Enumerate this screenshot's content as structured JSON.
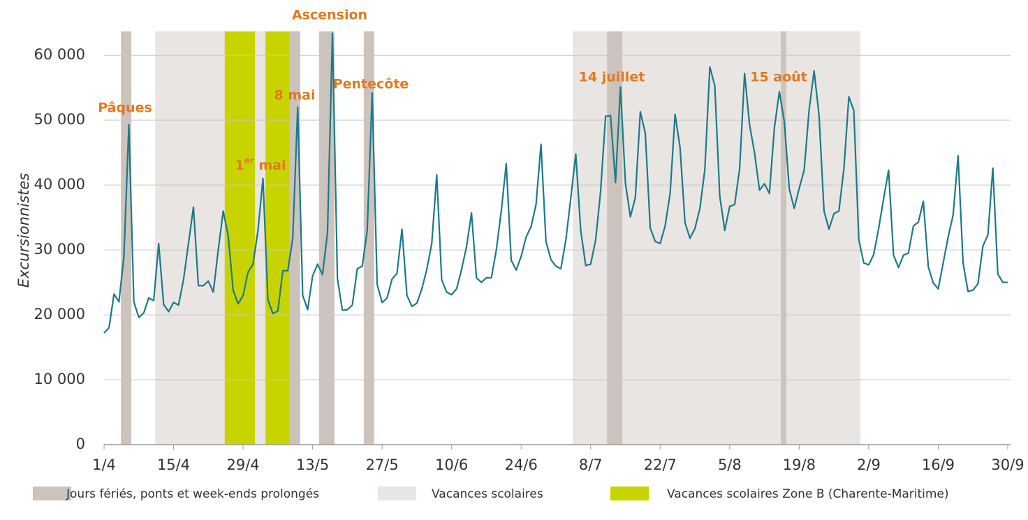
{
  "chart_data": {
    "type": "line",
    "y_label": "Excursionnistes",
    "categories": [
      "1/4",
      null,
      null,
      null,
      null,
      null,
      null,
      null,
      null,
      null,
      null,
      null,
      null,
      null,
      "15/4",
      null,
      null,
      null,
      null,
      null,
      null,
      null,
      null,
      null,
      null,
      null,
      null,
      null,
      "29/4",
      null,
      null,
      null,
      null,
      null,
      null,
      null,
      null,
      null,
      null,
      null,
      null,
      null,
      "13/5",
      null,
      null,
      null,
      null,
      null,
      null,
      null,
      null,
      null,
      null,
      null,
      null,
      null,
      "27/5",
      null,
      null,
      null,
      null,
      null,
      null,
      null,
      null,
      null,
      null,
      null,
      null,
      null,
      "10/6",
      null,
      null,
      null,
      null,
      null,
      null,
      null,
      null,
      null,
      null,
      null,
      null,
      null,
      "24/6",
      null,
      null,
      null,
      null,
      null,
      null,
      null,
      null,
      null,
      null,
      null,
      null,
      null,
      "8/7",
      null,
      null,
      null,
      null,
      null,
      null,
      null,
      null,
      null,
      null,
      null,
      null,
      null,
      "22/7",
      null,
      null,
      null,
      null,
      null,
      null,
      null,
      null,
      null,
      null,
      null,
      null,
      null,
      "5/8",
      null,
      null,
      null,
      null,
      null,
      null,
      null,
      null,
      null,
      null,
      null,
      null,
      null,
      "19/8",
      null,
      null,
      null,
      null,
      null,
      null,
      null,
      null,
      null,
      null,
      null,
      null,
      null,
      "2/9",
      null,
      null,
      null,
      null,
      null,
      null,
      null,
      null,
      null,
      null,
      null,
      null,
      null,
      "16/9",
      null,
      null,
      null,
      null,
      null,
      null,
      null,
      null,
      null,
      null,
      null,
      null,
      null,
      "30/9"
    ],
    "series": [
      {
        "name": "Excursionnistes",
        "color": "#1b7a8a",
        "values": [
          17200,
          18000,
          23200,
          22000,
          29000,
          49300,
          22000,
          19600,
          20300,
          22600,
          22200,
          31000,
          21600,
          20500,
          21900,
          21500,
          25400,
          31000,
          36600,
          24500,
          24500,
          25200,
          23500,
          30000,
          36000,
          32200,
          23800,
          21700,
          23000,
          26600,
          27800,
          33000,
          41000,
          22300,
          20200,
          20600,
          26800,
          26800,
          31800,
          52000,
          23000,
          20800,
          26000,
          27800,
          26200,
          32700,
          63400,
          25600,
          20700,
          20800,
          21500,
          27100,
          27500,
          33000,
          54200,
          24700,
          21900,
          22600,
          25500,
          26400,
          33200,
          23000,
          21300,
          21800,
          24000,
          27000,
          31000,
          41600,
          25400,
          23500,
          23100,
          24000,
          27000,
          30500,
          35700,
          25700,
          25000,
          25700,
          25700,
          30000,
          36000,
          43300,
          28400,
          26900,
          29000,
          32000,
          33600,
          37000,
          46300,
          31300,
          28500,
          27500,
          27100,
          31500,
          38000,
          44800,
          33000,
          27600,
          27800,
          31500,
          39000,
          50600,
          50700,
          40400,
          55100,
          40300,
          35100,
          38100,
          51300,
          48000,
          33400,
          31300,
          31000,
          33700,
          38700,
          50900,
          45800,
          34200,
          31800,
          33300,
          36400,
          42400,
          58200,
          55300,
          38300,
          33000,
          36700,
          37000,
          42500,
          57200,
          49300,
          45000,
          39200,
          40200,
          38700,
          48800,
          54400,
          49800,
          39400,
          36400,
          39500,
          42300,
          51600,
          57600,
          50700,
          36000,
          33200,
          35600,
          36000,
          42500,
          53600,
          51500,
          31600,
          28000,
          27700,
          29300,
          33300,
          37900,
          42300,
          29200,
          27300,
          29200,
          29500,
          33700,
          34300,
          37500,
          27400,
          24900,
          24000,
          28000,
          32000,
          35400,
          44500,
          28000,
          23600,
          23800,
          24800,
          30600,
          32300,
          42600,
          26300,
          25000,
          25000
        ]
      }
    ],
    "ylim": [
      0,
      64000
    ],
    "yticks": [
      0,
      {
        "value": 10000,
        "label": "10 000"
      },
      {
        "value": 20000,
        "label": "20 000"
      },
      {
        "value": 30000,
        "label": "30 000"
      },
      {
        "value": 40000,
        "label": "40 000"
      },
      {
        "value": 50000,
        "label": "50 000"
      },
      {
        "value": 60000,
        "label": "60 000"
      }
    ],
    "grid": true,
    "bands": [
      {
        "name": "Vacances scolaires",
        "color": "#e9e5e2",
        "ranges": [
          [
            10.3,
            39.5
          ],
          [
            94.4,
            152.3
          ]
        ]
      },
      {
        "name": "Vacances scolaires Zone B (Charente-Maritime)",
        "color": "#c8d400",
        "ranges": [
          [
            24.3,
            30.4
          ],
          [
            32.5,
            37.4
          ]
        ]
      },
      {
        "name": "Jours fériés, ponts et week-ends prolongés",
        "color": "#cbc3bc",
        "ranges": [
          [
            3.4,
            5.5
          ],
          [
            37.4,
            39.5
          ],
          [
            43.3,
            46.4
          ],
          [
            52.3,
            54.4
          ],
          [
            101.3,
            104.4
          ],
          [
            136.3,
            137.4
          ]
        ]
      }
    ],
    "annotations": [
      "Pâques",
      "1er mai",
      "8 mai",
      "Ascension",
      "Pentecôte",
      "14 juillet",
      "15 août"
    ]
  }
}
